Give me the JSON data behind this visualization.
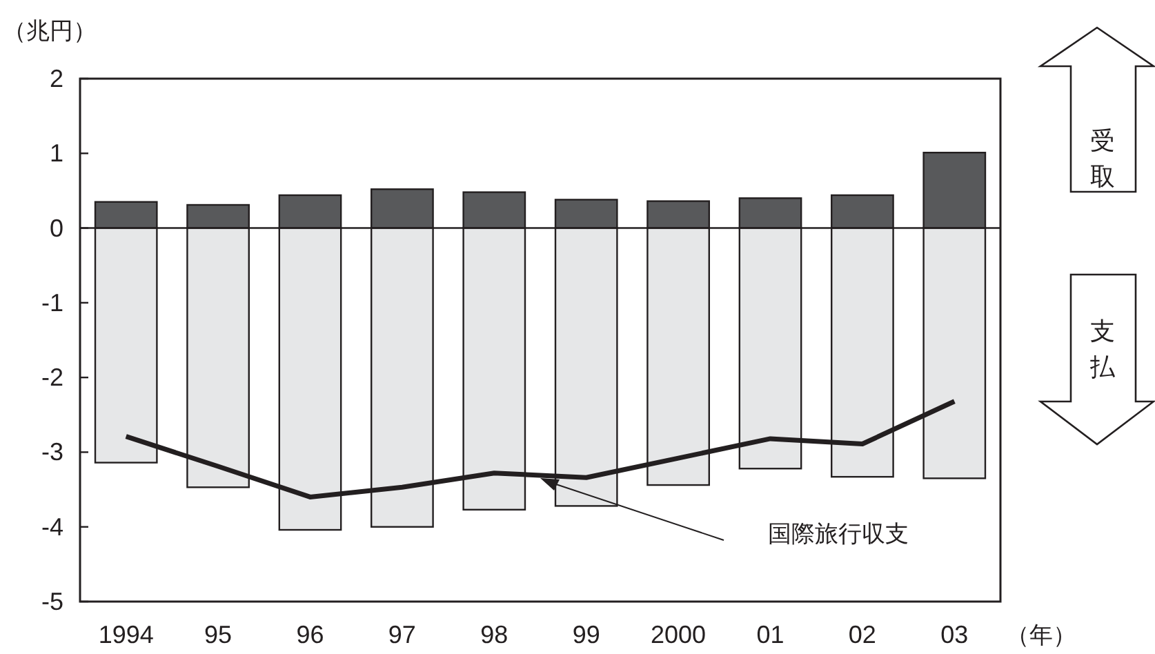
{
  "chart_data": {
    "type": "bar",
    "stacked": true,
    "ylabel": "（兆円）",
    "xlabel": "（年）",
    "categories": [
      "1994",
      "95",
      "96",
      "97",
      "98",
      "99",
      "2000",
      "01",
      "02",
      "03"
    ],
    "ylim": [
      -5,
      2
    ],
    "yticks": [
      -5,
      -4,
      -3,
      -2,
      -1,
      0,
      1,
      2
    ],
    "series": [
      {
        "color": "#58595b",
        "values": [
          0.35,
          0.31,
          0.44,
          0.52,
          0.48,
          0.38,
          0.36,
          0.4,
          0.44,
          1.01
        ]
      },
      {
        "color": "#e6e7e8",
        "values": [
          -3.14,
          -3.47,
          -4.04,
          -4.0,
          -3.77,
          -3.72,
          -3.44,
          -3.22,
          -3.33,
          -3.35
        ]
      },
      {
        "type": "line",
        "name": "国際旅行収支",
        "color": "#231f20",
        "values": [
          -2.79,
          -3.19,
          -3.6,
          -3.47,
          -3.28,
          -3.34,
          -3.08,
          -2.82,
          -2.89,
          -2.32
        ]
      }
    ],
    "annotations": [
      "受取",
      "支払"
    ]
  }
}
